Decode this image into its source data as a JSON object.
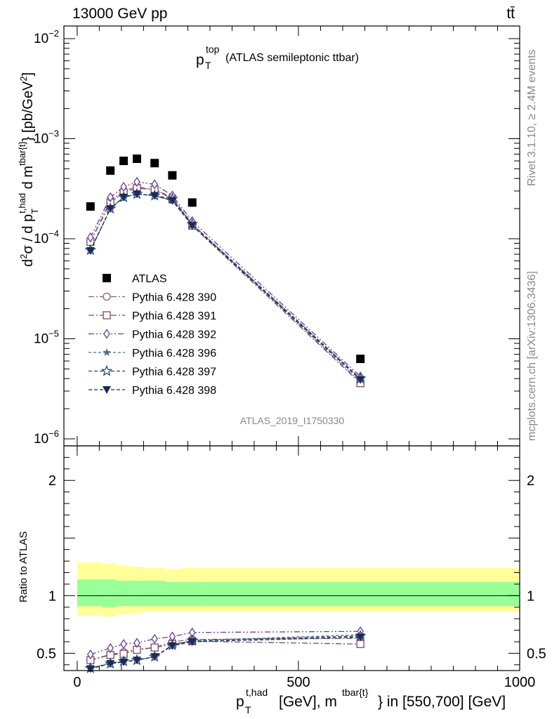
{
  "header": {
    "energy": "13000 GeV pp",
    "process": "tt̄"
  },
  "side_labels": {
    "rivet": "Rivet 3.1.10, ≥ 2.4M events",
    "mcplots": "mcplots.cern.ch [arXiv:1306.3436]"
  },
  "chart_data": [
    {
      "type": "scatter",
      "panel": "main",
      "title": "p_T^top (ATLAS semileptonic ttbar)",
      "title_main": "p",
      "title_sub": "T",
      "title_sup": "top",
      "title_rest": "(ATLAS semileptonic ttbar)",
      "ylabel": "d²σ / d p_T^{t,had} d m^{tbar{t}} [pb/GeV²]",
      "yscale": "log",
      "ylim": [
        1e-06,
        0.01
      ],
      "xlim": [
        -30,
        1000
      ],
      "analysis_label": "ATLAS_2019_I1750330",
      "y_ticks": [
        {
          "value": 1e-06,
          "base": "10",
          "exp": "−6"
        },
        {
          "value": 1e-05,
          "base": "10",
          "exp": "−5"
        },
        {
          "value": 0.0001,
          "base": "10",
          "exp": "−4"
        },
        {
          "value": 0.001,
          "base": "10",
          "exp": "−3"
        },
        {
          "value": 0.01,
          "base": "10",
          "exp": "−2"
        }
      ],
      "legend_position": "middle-left",
      "series": [
        {
          "name": "ATLAS",
          "marker": "square-filled",
          "color": "#000000",
          "x": [
            30,
            75,
            105,
            135,
            175,
            215,
            260,
            640
          ],
          "y": [
            0.00021,
            0.00048,
            0.0006,
            0.00063,
            0.00057,
            0.00043,
            0.00023,
            6.3e-06
          ]
        },
        {
          "name": "Pythia 6.428 390",
          "marker": "circle-open",
          "color": "#8b5a7f",
          "x": [
            30,
            75,
            105,
            135,
            175,
            215,
            260,
            640
          ],
          "y": [
            9.3e-05,
            0.00024,
            0.0003,
            0.00033,
            0.00031,
            0.00026,
            0.00014,
            3.7e-06
          ]
        },
        {
          "name": "Pythia 6.428 391",
          "marker": "square-open",
          "color": "#7a4a5f",
          "x": [
            30,
            75,
            105,
            135,
            175,
            215,
            260,
            640
          ],
          "y": [
            9.3e-05,
            0.00023,
            0.00029,
            0.00032,
            0.00031,
            0.00025,
            0.000135,
            3.6e-06
          ]
        },
        {
          "name": "Pythia 6.428 392",
          "marker": "diamond-open",
          "color": "#6a3a9a",
          "x": [
            30,
            75,
            105,
            135,
            175,
            215,
            260,
            640
          ],
          "y": [
            0.000103,
            0.00026,
            0.00033,
            0.00037,
            0.00035,
            0.00027,
            0.00015,
            4.2e-06
          ]
        },
        {
          "name": "Pythia 6.428 396",
          "marker": "star-filled",
          "color": "#4a7080",
          "x": [
            30,
            75,
            105,
            135,
            175,
            215,
            260,
            640
          ],
          "y": [
            7.7e-05,
            0.0002,
            0.00026,
            0.00028,
            0.00027,
            0.00024,
            0.00014,
            4e-06
          ]
        },
        {
          "name": "Pythia 6.428 397",
          "marker": "star-open",
          "color": "#2a4a6a",
          "x": [
            30,
            75,
            105,
            135,
            175,
            215,
            260,
            640
          ],
          "y": [
            7.7e-05,
            0.0002,
            0.00026,
            0.00028,
            0.00027,
            0.00025,
            0.00014,
            4e-06
          ]
        },
        {
          "name": "Pythia 6.428 398",
          "marker": "triangle-down-filled",
          "color": "#1a2a5a",
          "x": [
            30,
            75,
            105,
            135,
            175,
            215,
            260,
            640
          ],
          "y": [
            7.6e-05,
            0.0002,
            0.00026,
            0.00028,
            0.00027,
            0.00024,
            0.000135,
            3.9e-06
          ]
        }
      ]
    },
    {
      "type": "line",
      "panel": "ratio",
      "ylabel": "Ratio to ATLAS",
      "xlabel": "p_T^{t,had} [GeV], m^{tbar{t}} in [550,700] [GeV]",
      "xlabel_p": "p",
      "xlabel_sub": "T",
      "xlabel_sup": "t,had",
      "xlabel_mid": "[GeV], m",
      "xlabel_sup2": "tbar{t}",
      "xlabel_rest": "} in [550,700] [GeV]",
      "ylim": [
        0.35,
        2.3
      ],
      "xlim": [
        -30,
        1000
      ],
      "x_ticks": [
        {
          "value": 0,
          "label": "0"
        },
        {
          "value": 500,
          "label": "500"
        },
        {
          "value": 1000,
          "label": "1000"
        }
      ],
      "y_ticks": [
        {
          "value": 0.5,
          "label": "0.5"
        },
        {
          "value": 1,
          "label": "1"
        },
        {
          "value": 2,
          "label": "2"
        }
      ],
      "bands": {
        "edges": [
          0,
          55,
          90,
          120,
          150,
          200,
          235,
          280,
          1000
        ],
        "yellow_lo": [
          0.83,
          0.82,
          0.84,
          0.85,
          0.86,
          0.86,
          0.86,
          0.86
        ],
        "yellow_hi": [
          1.29,
          1.28,
          1.26,
          1.25,
          1.24,
          1.23,
          1.24,
          1.24
        ],
        "green_lo": [
          0.91,
          0.9,
          0.91,
          0.91,
          0.91,
          0.91,
          0.91,
          0.91
        ],
        "green_hi": [
          1.14,
          1.14,
          1.13,
          1.13,
          1.13,
          1.12,
          1.12,
          1.12
        ]
      },
      "series": [
        {
          "name": "Pythia 6.428 390",
          "marker": "circle-open",
          "color": "#8b5a7f",
          "x": [
            30,
            75,
            105,
            135,
            175,
            215,
            260,
            640
          ],
          "y": [
            0.44,
            0.49,
            0.51,
            0.535,
            0.55,
            0.6,
            0.62,
            0.63
          ]
        },
        {
          "name": "Pythia 6.428 391",
          "marker": "square-open",
          "color": "#7a4a5f",
          "x": [
            30,
            75,
            105,
            135,
            175,
            215,
            260,
            640
          ],
          "y": [
            0.44,
            0.485,
            0.495,
            0.53,
            0.55,
            0.58,
            0.605,
            0.58
          ]
        },
        {
          "name": "Pythia 6.428 392",
          "marker": "diamond-open",
          "color": "#6a3a9a",
          "x": [
            30,
            75,
            105,
            135,
            175,
            215,
            260,
            640
          ],
          "y": [
            0.49,
            0.545,
            0.58,
            0.59,
            0.625,
            0.645,
            0.68,
            0.69
          ]
        },
        {
          "name": "Pythia 6.428 396",
          "marker": "star-filled",
          "color": "#4a7080",
          "x": [
            30,
            75,
            105,
            135,
            175,
            215,
            260,
            640
          ],
          "y": [
            0.37,
            0.415,
            0.43,
            0.44,
            0.47,
            0.57,
            0.61,
            0.66
          ]
        },
        {
          "name": "Pythia 6.428 397",
          "marker": "star-open",
          "color": "#2a4a6a",
          "x": [
            30,
            75,
            105,
            135,
            175,
            215,
            260,
            640
          ],
          "y": [
            0.37,
            0.41,
            0.43,
            0.44,
            0.47,
            0.57,
            0.61,
            0.65
          ]
        },
        {
          "name": "Pythia 6.428 398",
          "marker": "triangle-down-filled",
          "color": "#1a2a5a",
          "x": [
            30,
            75,
            105,
            135,
            175,
            215,
            260,
            640
          ],
          "y": [
            0.365,
            0.41,
            0.425,
            0.44,
            0.47,
            0.565,
            0.6,
            0.64
          ]
        }
      ]
    }
  ]
}
